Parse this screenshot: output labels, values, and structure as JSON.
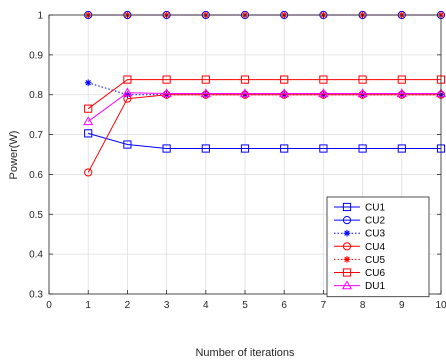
{
  "chart_data": {
    "type": "line",
    "title": "",
    "xlabel": "Number of iterations",
    "ylabel": "Power(W)",
    "xlim": [
      0,
      10
    ],
    "ylim": [
      0.3,
      1
    ],
    "xticks": [
      0,
      1,
      2,
      3,
      4,
      5,
      6,
      7,
      8,
      9,
      10
    ],
    "yticks": [
      0.3,
      0.4,
      0.5,
      0.6,
      0.7,
      0.8,
      0.9,
      1
    ],
    "grid": true,
    "legend_position": "lower-right",
    "x": [
      1,
      2,
      3,
      4,
      5,
      6,
      7,
      8,
      9,
      10
    ],
    "series": [
      {
        "name": "CU1",
        "color": "#0000ff",
        "line": "solid",
        "marker": "square",
        "values": [
          0.703,
          0.675,
          0.665,
          0.665,
          0.665,
          0.665,
          0.665,
          0.665,
          0.665,
          0.665
        ]
      },
      {
        "name": "CU2",
        "color": "#0000ff",
        "line": "solid",
        "marker": "circle",
        "values": [
          1,
          1,
          1,
          1,
          1,
          1,
          1,
          1,
          1,
          1
        ]
      },
      {
        "name": "CU3",
        "color": "#0000ff",
        "line": "dotted",
        "marker": "star",
        "values": [
          0.83,
          0.8,
          0.8,
          0.8,
          0.8,
          0.8,
          0.8,
          0.8,
          0.8,
          0.8
        ]
      },
      {
        "name": "CU4",
        "color": "#ff0000",
        "line": "solid",
        "marker": "circle",
        "values": [
          0.605,
          0.79,
          0.8,
          0.8,
          0.8,
          0.8,
          0.8,
          0.8,
          0.8,
          0.8
        ]
      },
      {
        "name": "CU5",
        "color": "#ff0000",
        "line": "dotted",
        "marker": "star",
        "values": [
          1,
          1,
          1,
          1,
          1,
          1,
          1,
          1,
          1,
          1
        ]
      },
      {
        "name": "CU6",
        "color": "#ff0000",
        "line": "solid",
        "marker": "square",
        "values": [
          0.765,
          0.838,
          0.838,
          0.838,
          0.838,
          0.838,
          0.838,
          0.838,
          0.838,
          0.838
        ]
      },
      {
        "name": "DU1",
        "color": "#ff00ff",
        "line": "solid",
        "marker": "triangle",
        "values": [
          0.733,
          0.805,
          0.803,
          0.803,
          0.803,
          0.803,
          0.803,
          0.803,
          0.803,
          0.803
        ]
      }
    ]
  }
}
